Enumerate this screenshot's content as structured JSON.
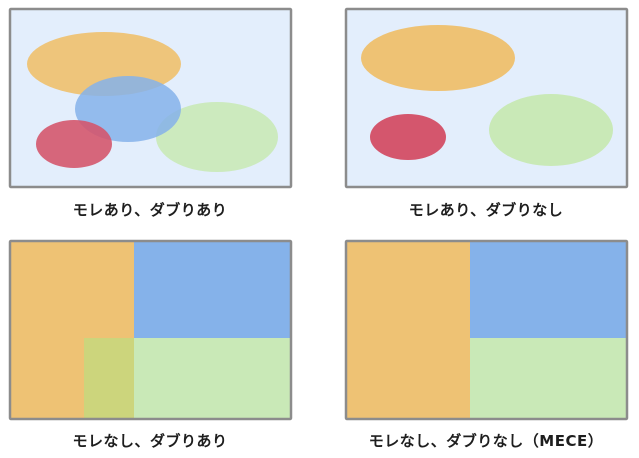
{
  "colors": {
    "frame_border": "#8c8c8c",
    "frame_background": "#e3eefc",
    "orange": "#eec274",
    "blue": "#85b2ea",
    "red": "#d4566d",
    "green": "#c9e9b7",
    "overlap": "#ccd57c"
  },
  "panels": [
    {
      "caption": "モレあり、ダブりあり"
    },
    {
      "caption": "モレあり、ダブりなし"
    },
    {
      "caption": "モレなし、ダブりあり"
    },
    {
      "caption": "モレなし、ダブりなし（MECE）"
    }
  ]
}
